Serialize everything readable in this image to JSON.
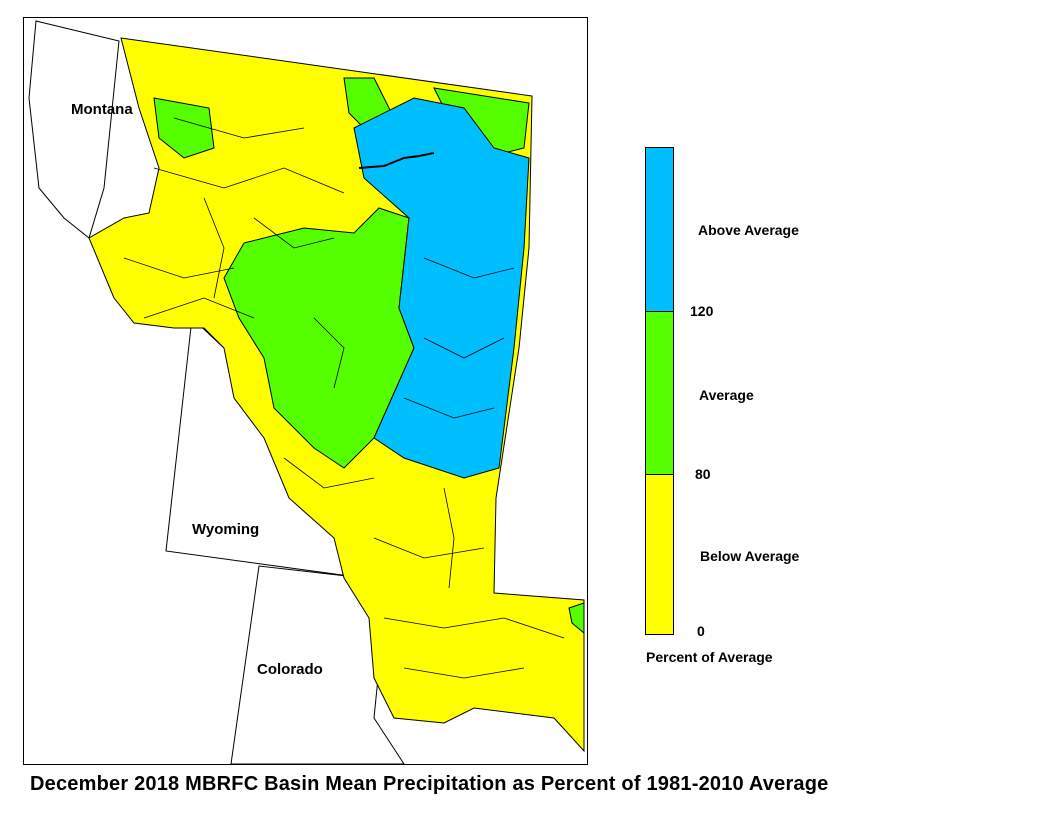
{
  "map": {
    "state_labels": {
      "montana": "Montana",
      "wyoming": "Wyoming",
      "colorado": "Colorado"
    },
    "colors": {
      "below_average": "#ffff00",
      "average": "#55ff00",
      "above_average": "#00bfff",
      "outline": "#000000"
    }
  },
  "legend": {
    "classes": [
      {
        "label": "Above Average",
        "color": "#00bfff",
        "min": 120
      },
      {
        "label": "Average",
        "color": "#55ff00",
        "min": 80,
        "max": 120
      },
      {
        "label": "Below Average",
        "color": "#ffff00",
        "min": 0,
        "max": 80
      }
    ],
    "ticks": [
      "120",
      "80",
      "0"
    ],
    "axis_title": "Percent of Average"
  },
  "caption": "December 2018 MBRFC Basin Mean Precipitation as Percent of 1981-2010 Average"
}
